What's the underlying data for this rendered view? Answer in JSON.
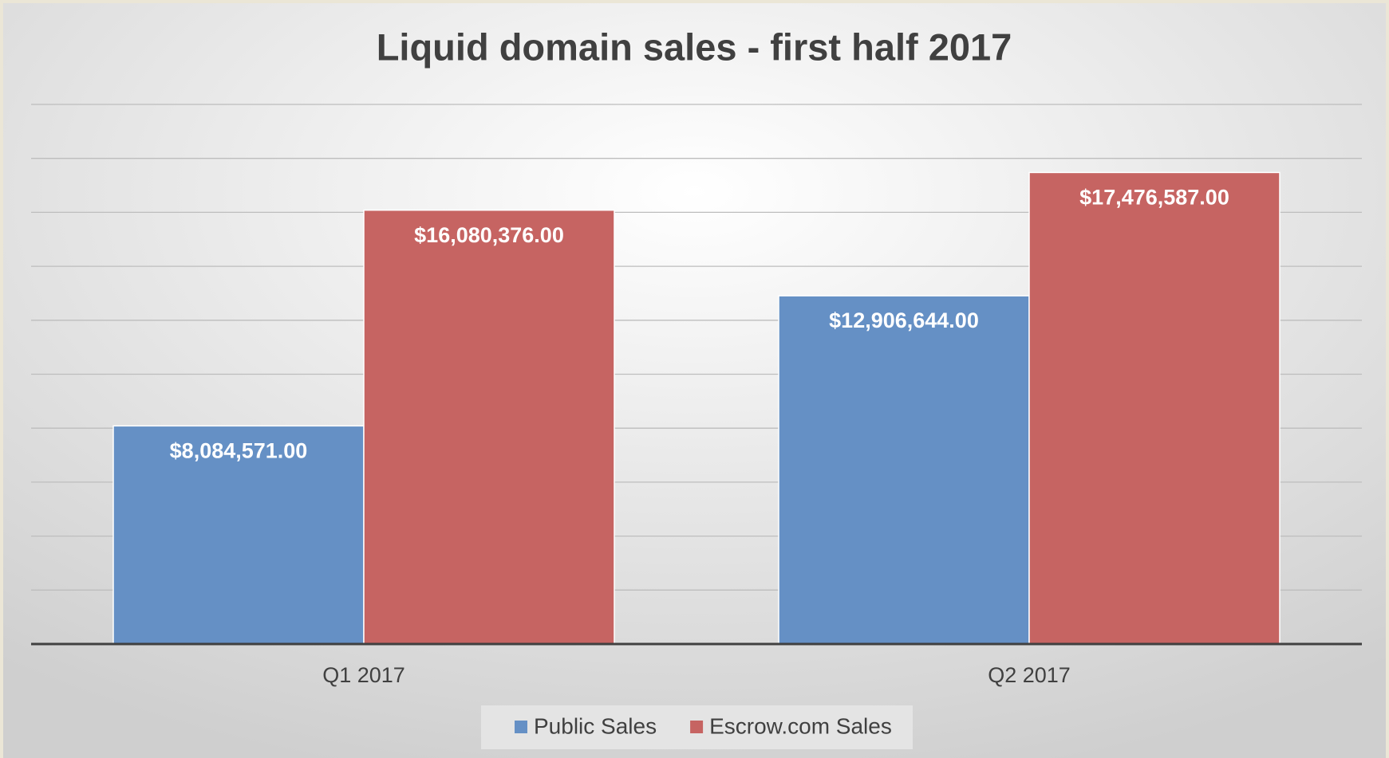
{
  "chart_data": {
    "type": "bar",
    "title": "Liquid domain sales - first half 2017",
    "categories": [
      "Q1 2017",
      "Q2 2017"
    ],
    "series": [
      {
        "name": "Public Sales",
        "color": "#6590c5",
        "values": [
          8084571,
          12906644
        ],
        "value_labels": [
          "$8,084,571.00",
          "$12,906,644.00"
        ]
      },
      {
        "name": "Escrow.com Sales",
        "color": "#c66462",
        "values": [
          16080376,
          17476587
        ],
        "value_labels": [
          "$16,080,376.00",
          "$17,476,587.00"
        ]
      }
    ],
    "ylim": [
      0,
      20000000
    ],
    "yticks": [
      0,
      2000000,
      4000000,
      6000000,
      8000000,
      10000000,
      12000000,
      14000000,
      16000000,
      18000000,
      20000000
    ],
    "grid": true,
    "tick_labels": false,
    "legend": "bottom"
  }
}
